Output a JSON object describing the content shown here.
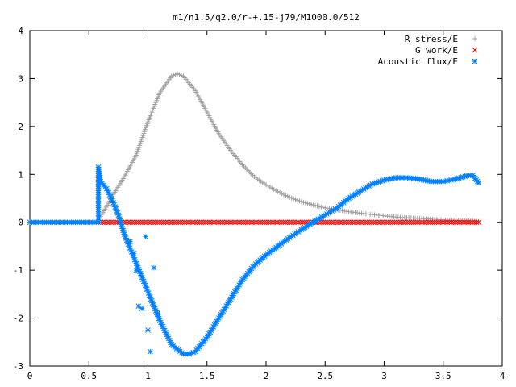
{
  "chart_data": {
    "type": "scatter",
    "title": "m1/n1.5/q2.0/r-+.15-j79/M1000.0/512",
    "xlabel": "",
    "ylabel": "",
    "xlim": [
      0,
      4
    ],
    "ylim": [
      -3,
      4
    ],
    "xticks": [
      "0",
      "0.5",
      "1",
      "1.5",
      "2",
      "2.5",
      "3",
      "3.5",
      "4"
    ],
    "yticks": [
      "-3",
      "-2",
      "-1",
      "0",
      "1",
      "2",
      "3",
      "4"
    ],
    "legend_position": "top-right",
    "grid": false,
    "series": [
      {
        "name": "R stress/E",
        "marker": "plus",
        "color": "#a0a0a0",
        "points": [
          [
            0.58,
            0.05
          ],
          [
            0.62,
            0.2
          ],
          [
            0.7,
            0.55
          ],
          [
            0.8,
            0.95
          ],
          [
            0.9,
            1.4
          ],
          [
            1.0,
            2.1
          ],
          [
            1.1,
            2.7
          ],
          [
            1.2,
            3.05
          ],
          [
            1.25,
            3.1
          ],
          [
            1.3,
            3.05
          ],
          [
            1.4,
            2.75
          ],
          [
            1.5,
            2.3
          ],
          [
            1.6,
            1.85
          ],
          [
            1.7,
            1.5
          ],
          [
            1.8,
            1.2
          ],
          [
            1.9,
            0.95
          ],
          [
            2.0,
            0.78
          ],
          [
            2.1,
            0.64
          ],
          [
            2.2,
            0.52
          ],
          [
            2.3,
            0.43
          ],
          [
            2.4,
            0.36
          ],
          [
            2.5,
            0.3
          ],
          [
            2.7,
            0.22
          ],
          [
            2.9,
            0.16
          ],
          [
            3.1,
            0.11
          ],
          [
            3.3,
            0.08
          ],
          [
            3.5,
            0.05
          ],
          [
            3.7,
            0.03
          ],
          [
            3.8,
            0.02
          ]
        ]
      },
      {
        "name": "G work/E",
        "marker": "cross",
        "color": "#ff0000",
        "points": [
          [
            0.6,
            0.0
          ],
          [
            3.8,
            0.0
          ]
        ]
      },
      {
        "name": "Acoustic flux/E",
        "marker": "star",
        "color": "#0080ff",
        "points": [
          [
            0,
            0.0
          ],
          [
            0.58,
            0.0
          ],
          [
            0.58,
            1.15
          ],
          [
            0.6,
            0.85
          ],
          [
            0.65,
            0.7
          ],
          [
            0.7,
            0.45
          ],
          [
            0.75,
            0.15
          ],
          [
            0.8,
            -0.25
          ],
          [
            0.85,
            -0.4
          ],
          [
            0.88,
            -0.65
          ],
          [
            0.9,
            -1.0
          ],
          [
            0.92,
            -1.75
          ],
          [
            0.95,
            -1.8
          ],
          [
            0.98,
            -0.3
          ],
          [
            1.0,
            -2.25
          ],
          [
            1.02,
            -2.7
          ],
          [
            1.05,
            -0.95
          ],
          [
            1.08,
            -1.9
          ],
          [
            1.1,
            -2.05
          ],
          [
            1.15,
            -2.3
          ],
          [
            1.2,
            -2.55
          ],
          [
            1.3,
            -2.75
          ],
          [
            1.35,
            -2.75
          ],
          [
            1.4,
            -2.7
          ],
          [
            1.5,
            -2.4
          ],
          [
            1.6,
            -2.0
          ],
          [
            1.7,
            -1.6
          ],
          [
            1.8,
            -1.2
          ],
          [
            1.9,
            -0.9
          ],
          [
            2.0,
            -0.68
          ],
          [
            2.1,
            -0.5
          ],
          [
            2.2,
            -0.32
          ],
          [
            2.3,
            -0.15
          ],
          [
            2.4,
            0.0
          ],
          [
            2.5,
            0.15
          ],
          [
            2.6,
            0.3
          ],
          [
            2.7,
            0.5
          ],
          [
            2.8,
            0.65
          ],
          [
            2.9,
            0.8
          ],
          [
            3.0,
            0.88
          ],
          [
            3.1,
            0.93
          ],
          [
            3.2,
            0.93
          ],
          [
            3.3,
            0.9
          ],
          [
            3.4,
            0.85
          ],
          [
            3.5,
            0.85
          ],
          [
            3.6,
            0.9
          ],
          [
            3.7,
            0.97
          ],
          [
            3.75,
            0.98
          ],
          [
            3.8,
            0.82
          ]
        ]
      }
    ]
  }
}
